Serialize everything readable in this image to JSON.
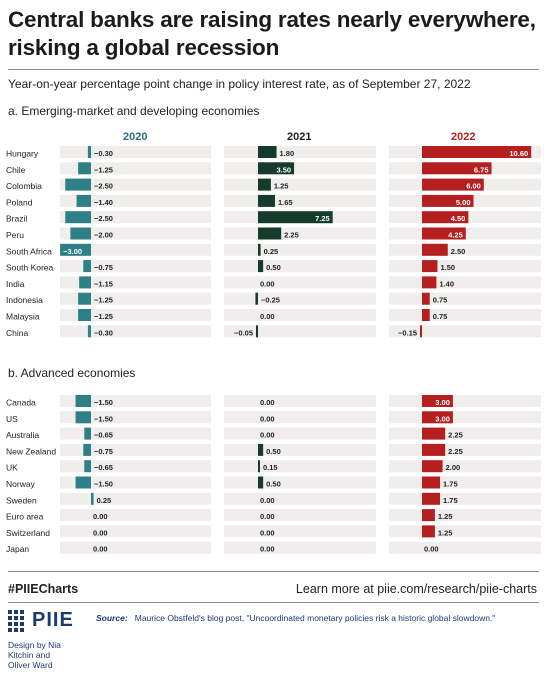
{
  "title": "Central banks are raising rates nearly everywhere, risking a global recession",
  "subtitle": "Year-on-year percentage point change in policy interest rate, as of September 27, 2022",
  "footer": {
    "hashtag": "#PIIECharts",
    "learn_more": "Learn more at piie.com/research/piie-charts",
    "source_label": "Source:",
    "source_text": "Maurice Obstfeld's blog post, \"Uncoordinated monetary policies risk a historic global slowdown.\"",
    "logo_text": "PIIE",
    "credit_line1": "Design by Nia",
    "credit_line2": "Kitchin and",
    "credit_line3": "Oliver Ward"
  },
  "colors": {
    "y2020": "#2e7f86",
    "y2021": "#153b2a",
    "y2022": "#b51f1f",
    "track": "#efeeec",
    "header2022": "#b51f1f"
  },
  "chart_data": {
    "type": "bar",
    "years": [
      "2020",
      "2021",
      "2022"
    ],
    "groups": [
      {
        "title": "a. Emerging-market and developing economies",
        "categories": [
          "Hungary",
          "Chile",
          "Colombia",
          "Poland",
          "Brazil",
          "Peru",
          "South Africa",
          "South Korea",
          "India",
          "Indonesia",
          "Malaysia",
          "China"
        ],
        "series": [
          {
            "name": "2020",
            "values": [
              -0.3,
              -1.25,
              -2.5,
              -1.4,
              -2.5,
              -2.0,
              -3.0,
              -0.75,
              -1.15,
              -1.25,
              -1.25,
              -0.3
            ],
            "labels": [
              "−0.30",
              "−1.25",
              "−2.50",
              "−1.40",
              "−2.50",
              "−2.00",
              "−3.00",
              "−0.75",
              "−1.15",
              "−1.25",
              "−1.25",
              "−0.30"
            ]
          },
          {
            "name": "2021",
            "values": [
              1.8,
              3.5,
              1.25,
              1.65,
              7.25,
              2.25,
              0.25,
              0.5,
              0.0,
              -0.25,
              0.0,
              -0.05
            ],
            "labels": [
              "1.80",
              "3.50",
              "1.25",
              "1.65",
              "7.25",
              "2.25",
              "0.25",
              "0.50",
              "0.00",
              "−0.25",
              "0.00",
              "−0.05"
            ]
          },
          {
            "name": "2022",
            "values": [
              10.6,
              6.75,
              6.0,
              5.0,
              4.5,
              4.25,
              2.5,
              1.5,
              1.4,
              0.75,
              0.75,
              -0.15
            ],
            "labels": [
              "10.60",
              "6.75",
              "6.00",
              "5.00",
              "4.50",
              "4.25",
              "2.50",
              "1.50",
              "1.40",
              "0.75",
              "0.75",
              "−0.15"
            ]
          }
        ]
      },
      {
        "title": "b. Advanced economies",
        "categories": [
          "Canada",
          "US",
          "Australia",
          "New Zealand",
          "UK",
          "Norway",
          "Sweden",
          "Euro area",
          "Switzerland",
          "Japan"
        ],
        "series": [
          {
            "name": "2020",
            "values": [
              -1.5,
              -1.5,
              -0.65,
              -0.75,
              -0.65,
              -1.5,
              0.25,
              0.0,
              0.0,
              0.0
            ],
            "labels": [
              "−1.50",
              "−1.50",
              "−0.65",
              "−0.75",
              "−0.65",
              "−1.50",
              "0.25",
              "0.00",
              "0.00",
              "0.00"
            ]
          },
          {
            "name": "2021",
            "values": [
              0.0,
              0.0,
              0.0,
              0.5,
              0.15,
              0.5,
              0.0,
              0.0,
              0.0,
              0.0
            ],
            "labels": [
              "0.00",
              "0.00",
              "0.00",
              "0.50",
              "0.15",
              "0.50",
              "0.00",
              "0.00",
              "0.00",
              "0.00"
            ]
          },
          {
            "name": "2022",
            "values": [
              3.0,
              3.0,
              2.25,
              2.25,
              2.0,
              1.75,
              1.75,
              1.25,
              1.25,
              0.0
            ],
            "labels": [
              "3.00",
              "3.00",
              "2.25",
              "2.25",
              "2.00",
              "1.75",
              "1.75",
              "1.25",
              "1.25",
              "0.00"
            ]
          }
        ]
      }
    ]
  }
}
